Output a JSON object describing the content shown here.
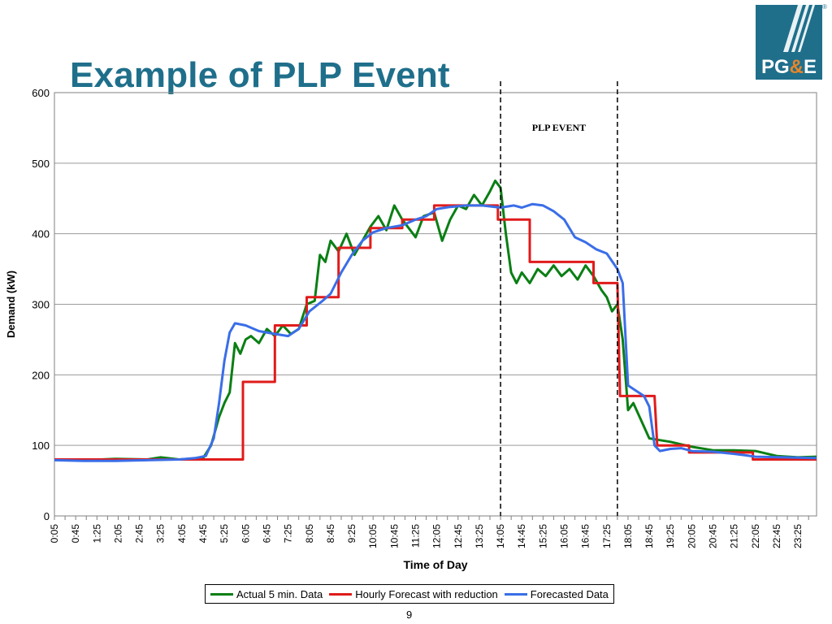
{
  "slide": {
    "title": "Example of PLP Event",
    "page_number": "9",
    "logo_text": "PG&E",
    "logo_registered": "®"
  },
  "colors": {
    "title": "#1f6f8b",
    "actual": "#0a7f14",
    "hourly": "#e01b1b",
    "forecast": "#3a6ee8",
    "logo_bg": "#1f6f8b",
    "logo_amp": "#e8852a"
  },
  "chart_data": {
    "type": "line",
    "xlabel": "Time of Day",
    "ylabel": "Demand (kW)",
    "ylim": [
      0,
      600
    ],
    "yticks": [
      0,
      100,
      200,
      300,
      400,
      500,
      600
    ],
    "xlim": [
      "0:05",
      "24:00"
    ],
    "xticks": [
      "0:05",
      "0:45",
      "1:25",
      "2:05",
      "2:45",
      "3:25",
      "4:05",
      "4:45",
      "5:25",
      "6:05",
      "6:45",
      "7:25",
      "8:05",
      "8:45",
      "9:25",
      "10:05",
      "10:45",
      "11:25",
      "12:05",
      "12:45",
      "13:25",
      "14:05",
      "14:45",
      "15:25",
      "16:05",
      "16:45",
      "17:25",
      "18:05",
      "18:45",
      "19:25",
      "20:05",
      "20:45",
      "21:25",
      "22:05",
      "22:45",
      "23:25"
    ],
    "grid": "horizontal",
    "legend_position": "bottom",
    "event": {
      "label": "PLP EVENT",
      "start": "14:05",
      "end": "17:45"
    },
    "series": [
      {
        "name": "Actual 5 min. Data",
        "color": "#0a7f14",
        "points": [
          [
            "0:05",
            80
          ],
          [
            "1:00",
            79
          ],
          [
            "2:00",
            81
          ],
          [
            "3:00",
            80
          ],
          [
            "3:25",
            83
          ],
          [
            "4:00",
            80
          ],
          [
            "4:45",
            82
          ],
          [
            "5:00",
            100
          ],
          [
            "5:15",
            140
          ],
          [
            "5:25",
            160
          ],
          [
            "5:35",
            175
          ],
          [
            "5:45",
            245
          ],
          [
            "5:55",
            230
          ],
          [
            "6:05",
            250
          ],
          [
            "6:15",
            255
          ],
          [
            "6:30",
            245
          ],
          [
            "6:45",
            265
          ],
          [
            "7:00",
            255
          ],
          [
            "7:15",
            270
          ],
          [
            "7:30",
            258
          ],
          [
            "7:45",
            265
          ],
          [
            "8:00",
            300
          ],
          [
            "8:15",
            305
          ],
          [
            "8:25",
            370
          ],
          [
            "8:35",
            360
          ],
          [
            "8:45",
            390
          ],
          [
            "9:00",
            375
          ],
          [
            "9:15",
            400
          ],
          [
            "9:30",
            370
          ],
          [
            "9:45",
            390
          ],
          [
            "10:00",
            410
          ],
          [
            "10:15",
            425
          ],
          [
            "10:30",
            405
          ],
          [
            "10:45",
            440
          ],
          [
            "11:00",
            420
          ],
          [
            "11:15",
            405
          ],
          [
            "11:25",
            395
          ],
          [
            "11:40",
            425
          ],
          [
            "12:00",
            430
          ],
          [
            "12:15",
            390
          ],
          [
            "12:30",
            420
          ],
          [
            "12:45",
            440
          ],
          [
            "13:00",
            435
          ],
          [
            "13:15",
            455
          ],
          [
            "13:30",
            440
          ],
          [
            "13:45",
            460
          ],
          [
            "13:55",
            475
          ],
          [
            "14:05",
            465
          ],
          [
            "14:15",
            400
          ],
          [
            "14:25",
            345
          ],
          [
            "14:35",
            330
          ],
          [
            "14:45",
            345
          ],
          [
            "15:00",
            330
          ],
          [
            "15:15",
            350
          ],
          [
            "15:30",
            340
          ],
          [
            "15:45",
            355
          ],
          [
            "16:00",
            340
          ],
          [
            "16:15",
            350
          ],
          [
            "16:30",
            335
          ],
          [
            "16:45",
            355
          ],
          [
            "17:00",
            340
          ],
          [
            "17:15",
            320
          ],
          [
            "17:25",
            310
          ],
          [
            "17:35",
            290
          ],
          [
            "17:45",
            300
          ],
          [
            "17:55",
            250
          ],
          [
            "18:05",
            150
          ],
          [
            "18:15",
            160
          ],
          [
            "18:30",
            135
          ],
          [
            "18:45",
            110
          ],
          [
            "19:00",
            108
          ],
          [
            "19:25",
            105
          ],
          [
            "20:05",
            98
          ],
          [
            "20:45",
            93
          ],
          [
            "21:25",
            93
          ],
          [
            "22:05",
            92
          ],
          [
            "22:45",
            85
          ],
          [
            "23:25",
            83
          ],
          [
            "24:00",
            84
          ]
        ]
      },
      {
        "name": "Hourly Forecast with reduction",
        "color": "#e01b1b",
        "points": [
          [
            "0:05",
            80
          ],
          [
            "6:00",
            80
          ],
          [
            "6:00",
            190
          ],
          [
            "7:00",
            190
          ],
          [
            "7:00",
            270
          ],
          [
            "8:00",
            270
          ],
          [
            "8:00",
            310
          ],
          [
            "9:00",
            310
          ],
          [
            "9:00",
            380
          ],
          [
            "10:00",
            380
          ],
          [
            "10:00",
            408
          ],
          [
            "11:00",
            408
          ],
          [
            "11:00",
            420
          ],
          [
            "12:00",
            420
          ],
          [
            "12:00",
            440
          ],
          [
            "14:00",
            440
          ],
          [
            "14:00",
            420
          ],
          [
            "15:00",
            420
          ],
          [
            "15:00",
            360
          ],
          [
            "17:00",
            360
          ],
          [
            "17:00",
            330
          ],
          [
            "17:45",
            330
          ],
          [
            "17:50",
            170
          ],
          [
            "18:55",
            170
          ],
          [
            "19:00",
            100
          ],
          [
            "20:00",
            100
          ],
          [
            "20:00",
            90
          ],
          [
            "22:00",
            90
          ],
          [
            "22:00",
            80
          ],
          [
            "24:00",
            80
          ]
        ]
      },
      {
        "name": "Forecasted Data",
        "color": "#3a6ee8",
        "points": [
          [
            "0:05",
            79
          ],
          [
            "1:00",
            78
          ],
          [
            "2:00",
            78
          ],
          [
            "3:00",
            79
          ],
          [
            "4:00",
            80
          ],
          [
            "4:30",
            82
          ],
          [
            "4:50",
            85
          ],
          [
            "5:05",
            110
          ],
          [
            "5:15",
            160
          ],
          [
            "5:25",
            220
          ],
          [
            "5:35",
            260
          ],
          [
            "5:45",
            273
          ],
          [
            "6:05",
            270
          ],
          [
            "6:30",
            262
          ],
          [
            "7:00",
            258
          ],
          [
            "7:25",
            255
          ],
          [
            "7:45",
            265
          ],
          [
            "8:05",
            290
          ],
          [
            "8:30",
            305
          ],
          [
            "8:45",
            315
          ],
          [
            "9:05",
            345
          ],
          [
            "9:25",
            370
          ],
          [
            "9:45",
            390
          ],
          [
            "10:05",
            402
          ],
          [
            "10:30",
            408
          ],
          [
            "11:00",
            412
          ],
          [
            "11:25",
            420
          ],
          [
            "11:45",
            425
          ],
          [
            "12:05",
            435
          ],
          [
            "12:30",
            438
          ],
          [
            "13:00",
            440
          ],
          [
            "13:30",
            440
          ],
          [
            "14:05",
            437
          ],
          [
            "14:30",
            440
          ],
          [
            "14:45",
            437
          ],
          [
            "15:05",
            442
          ],
          [
            "15:25",
            440
          ],
          [
            "15:45",
            432
          ],
          [
            "16:05",
            420
          ],
          [
            "16:25",
            395
          ],
          [
            "16:45",
            388
          ],
          [
            "17:05",
            378
          ],
          [
            "17:25",
            372
          ],
          [
            "17:45",
            350
          ],
          [
            "17:55",
            330
          ],
          [
            "18:05",
            185
          ],
          [
            "18:15",
            180
          ],
          [
            "18:35",
            170
          ],
          [
            "18:45",
            155
          ],
          [
            "18:55",
            100
          ],
          [
            "19:05",
            92
          ],
          [
            "19:25",
            95
          ],
          [
            "19:45",
            96
          ],
          [
            "20:05",
            92
          ],
          [
            "20:45",
            91
          ],
          [
            "21:25",
            88
          ],
          [
            "21:45",
            86
          ],
          [
            "22:05",
            84
          ],
          [
            "23:00",
            83
          ],
          [
            "24:00",
            82
          ]
        ]
      }
    ]
  }
}
